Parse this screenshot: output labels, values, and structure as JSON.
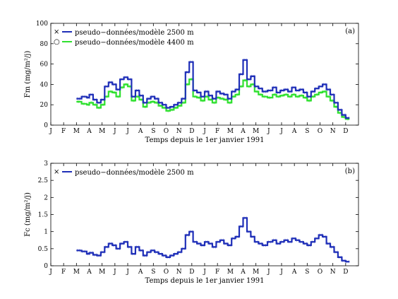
{
  "chart_data": [
    {
      "type": "line",
      "panel_label": "(a)",
      "ylabel": "Fm (mg/m²/j)",
      "xlabel": "Temps depuis le 1er janvier 1991",
      "ylim": [
        0,
        100
      ],
      "yticks": [
        0,
        20,
        40,
        60,
        80,
        100
      ],
      "month_labels": [
        "J",
        "F",
        "M",
        "A",
        "M",
        "J",
        "J",
        "A",
        "S",
        "O",
        "N",
        "D",
        "J",
        "F",
        "M",
        "A",
        "M",
        "J",
        "J",
        "A",
        "S",
        "O",
        "N",
        "D"
      ],
      "legend_position": "top-left",
      "series": [
        {
          "name": "pseudo−données/modèle 2500 m",
          "marker": "×",
          "color": "#1f2fb8",
          "x": [
            2.0,
            2.4,
            2.8,
            3.0,
            3.3,
            3.6,
            3.9,
            4.2,
            4.5,
            4.8,
            5.1,
            5.4,
            5.7,
            6.0,
            6.3,
            6.6,
            6.9,
            7.2,
            7.5,
            7.8,
            8.1,
            8.4,
            8.7,
            9.0,
            9.3,
            9.6,
            9.9,
            10.2,
            10.5,
            10.8,
            11.1,
            11.4,
            11.7,
            12.0,
            12.3,
            12.6,
            12.9,
            13.2,
            13.5,
            13.8,
            14.1,
            14.4,
            14.7,
            15.0,
            15.3,
            15.6,
            15.9,
            16.2,
            16.5,
            16.9,
            17.3,
            17.6,
            17.9,
            18.2,
            18.5,
            18.8,
            19.1,
            19.4,
            19.7,
            20.0,
            20.3,
            20.6,
            20.9,
            21.2,
            21.5,
            21.8,
            22.1,
            22.4,
            22.7,
            23.0
          ],
          "y": [
            26,
            28,
            27,
            30,
            25,
            22,
            25,
            38,
            42,
            40,
            35,
            45,
            47,
            45,
            28,
            34,
            29,
            22,
            26,
            28,
            26,
            22,
            20,
            17,
            18,
            20,
            22,
            26,
            52,
            62,
            34,
            32,
            28,
            33,
            29,
            26,
            33,
            31,
            30,
            26,
            33,
            35,
            50,
            64,
            45,
            48,
            38,
            36,
            33,
            34,
            37,
            32,
            34,
            35,
            33,
            37,
            34,
            35,
            32,
            28,
            33,
            36,
            38,
            40,
            35,
            30,
            22,
            15,
            10,
            7
          ]
        },
        {
          "name": "pseudo−données/modèle 4400 m",
          "marker": "○",
          "color": "#2fe02f",
          "x": [
            2.0,
            2.4,
            2.8,
            3.0,
            3.3,
            3.6,
            3.9,
            4.2,
            4.5,
            4.8,
            5.1,
            5.4,
            5.7,
            6.0,
            6.3,
            6.6,
            6.9,
            7.2,
            7.5,
            7.8,
            8.1,
            8.4,
            8.7,
            9.0,
            9.3,
            9.6,
            9.9,
            10.2,
            10.5,
            10.8,
            11.1,
            11.4,
            11.7,
            12.0,
            12.3,
            12.6,
            12.9,
            13.2,
            13.5,
            13.8,
            14.1,
            14.4,
            14.7,
            15.0,
            15.3,
            15.6,
            15.9,
            16.2,
            16.5,
            16.9,
            17.3,
            17.6,
            17.9,
            18.2,
            18.5,
            18.8,
            19.1,
            19.4,
            19.7,
            20.0,
            20.3,
            20.6,
            20.9,
            21.2,
            21.5,
            21.8,
            22.1,
            22.4,
            22.7,
            23.0
          ],
          "y": [
            23,
            21,
            20,
            22,
            20,
            17,
            20,
            28,
            33,
            32,
            28,
            37,
            40,
            38,
            24,
            28,
            25,
            18,
            22,
            23,
            22,
            19,
            17,
            14,
            15,
            17,
            19,
            22,
            40,
            45,
            28,
            27,
            24,
            28,
            25,
            22,
            27,
            26,
            25,
            22,
            28,
            30,
            38,
            44,
            38,
            40,
            33,
            30,
            28,
            27,
            30,
            28,
            29,
            30,
            28,
            30,
            28,
            29,
            27,
            24,
            28,
            30,
            32,
            33,
            28,
            24,
            18,
            12,
            8,
            6
          ]
        }
      ]
    },
    {
      "type": "line",
      "panel_label": "(b)",
      "ylabel": "Fc (mg/m²/j)",
      "xlabel": "Temps depuis le 1er janvier 1991",
      "ylim": [
        0,
        3
      ],
      "yticks": [
        0,
        0.5,
        1,
        1.5,
        2,
        2.5,
        3
      ],
      "ytick_labels": [
        "0",
        "0.5",
        "1",
        "1.5",
        "2",
        "2.5",
        "3"
      ],
      "month_labels": [
        "J",
        "F",
        "M",
        "A",
        "M",
        "J",
        "J",
        "A",
        "S",
        "O",
        "N",
        "D",
        "J",
        "F",
        "M",
        "A",
        "M",
        "J",
        "J",
        "A",
        "S",
        "O",
        "N",
        "D"
      ],
      "legend_position": "top-left",
      "series": [
        {
          "name": "pseudo−données/modèle 2500 m",
          "marker": "×",
          "color": "#1f2fb8",
          "x": [
            2.0,
            2.4,
            2.8,
            3.0,
            3.3,
            3.6,
            3.9,
            4.2,
            4.5,
            4.8,
            5.1,
            5.4,
            5.7,
            6.0,
            6.3,
            6.6,
            6.9,
            7.2,
            7.5,
            7.8,
            8.1,
            8.4,
            8.7,
            9.0,
            9.3,
            9.6,
            9.9,
            10.2,
            10.5,
            10.8,
            11.1,
            11.4,
            11.7,
            12.0,
            12.3,
            12.6,
            12.9,
            13.2,
            13.5,
            13.8,
            14.1,
            14.4,
            14.7,
            15.0,
            15.3,
            15.6,
            15.9,
            16.2,
            16.5,
            16.9,
            17.3,
            17.6,
            17.9,
            18.2,
            18.5,
            18.8,
            19.1,
            19.4,
            19.7,
            20.0,
            20.3,
            20.6,
            20.9,
            21.2,
            21.5,
            21.8,
            22.1,
            22.4,
            22.7,
            23.0
          ],
          "y": [
            0.45,
            0.42,
            0.35,
            0.38,
            0.32,
            0.3,
            0.4,
            0.55,
            0.65,
            0.6,
            0.5,
            0.65,
            0.7,
            0.55,
            0.35,
            0.55,
            0.45,
            0.3,
            0.4,
            0.45,
            0.4,
            0.35,
            0.3,
            0.25,
            0.3,
            0.35,
            0.4,
            0.5,
            0.9,
            1.0,
            0.7,
            0.65,
            0.6,
            0.7,
            0.65,
            0.55,
            0.7,
            0.75,
            0.65,
            0.6,
            0.8,
            0.85,
            1.15,
            1.4,
            1.0,
            0.85,
            0.7,
            0.65,
            0.6,
            0.7,
            0.75,
            0.65,
            0.7,
            0.75,
            0.7,
            0.8,
            0.75,
            0.7,
            0.65,
            0.6,
            0.7,
            0.8,
            0.9,
            0.85,
            0.65,
            0.55,
            0.4,
            0.25,
            0.15,
            0.12
          ]
        }
      ]
    }
  ]
}
